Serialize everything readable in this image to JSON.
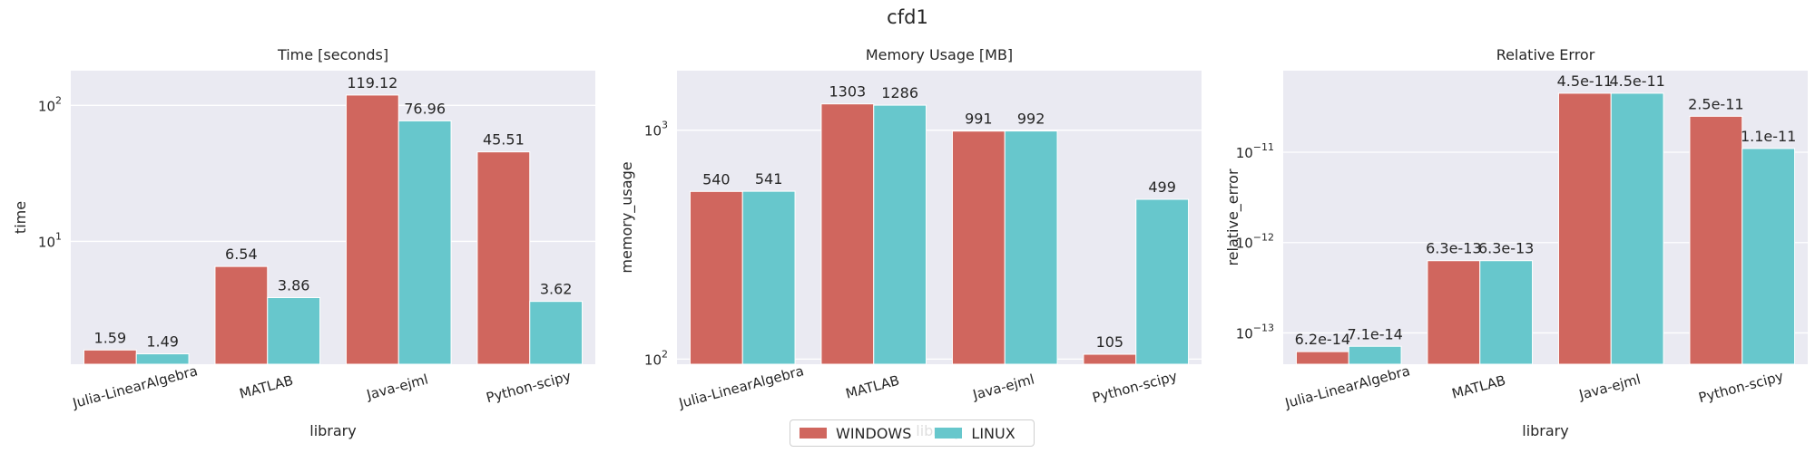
{
  "figure": {
    "title": "cfd1"
  },
  "colors": {
    "WINDOWS": "#d0665e",
    "LINUX": "#67c7cc",
    "panel_bg": "#eaeaf2",
    "grid": "#ffffff"
  },
  "legend": {
    "items": [
      {
        "label": "WINDOWS"
      },
      {
        "label": "LINUX"
      }
    ],
    "placement": "lower-center"
  },
  "chart_data": [
    {
      "type": "bar",
      "title": "Time [seconds]",
      "xlabel": "library",
      "ylabel": "time",
      "yscale": "log",
      "ylim": [
        1.25,
        180
      ],
      "yticks": [
        10,
        100
      ],
      "yticklabels": [
        [
          "10",
          "1"
        ],
        [
          "10",
          "2"
        ]
      ],
      "categories": [
        "Julia-LinearAlgebra",
        "MATLAB",
        "Java-ejml",
        "Python-scipy"
      ],
      "series": [
        {
          "name": "WINDOWS",
          "values": [
            1.59,
            6.54,
            119.12,
            45.51
          ],
          "labels": [
            "1.59",
            "6.54",
            "119.12",
            "45.51"
          ]
        },
        {
          "name": "LINUX",
          "values": [
            1.49,
            3.86,
            76.96,
            3.62
          ],
          "labels": [
            "1.49",
            "3.86",
            "76.96",
            "3.62"
          ]
        }
      ],
      "grid": true
    },
    {
      "type": "bar",
      "title": "Memory Usage [MB]",
      "xlabel": "library",
      "ylabel": "memory_usage",
      "yscale": "log",
      "ylim": [
        95,
        1820
      ],
      "yticks": [
        100,
        1000
      ],
      "yticklabels": [
        [
          "10",
          "2"
        ],
        [
          "10",
          "3"
        ]
      ],
      "categories": [
        "Julia-LinearAlgebra",
        "MATLAB",
        "Java-ejml",
        "Python-scipy"
      ],
      "series": [
        {
          "name": "WINDOWS",
          "values": [
            540,
            1303,
            991,
            105
          ],
          "labels": [
            "540",
            "1303",
            "991",
            "105"
          ]
        },
        {
          "name": "LINUX",
          "values": [
            541,
            1286,
            992,
            499
          ],
          "labels": [
            "541",
            "1286",
            "992",
            "499"
          ]
        }
      ],
      "grid": true
    },
    {
      "type": "bar",
      "title": "Relative Error",
      "xlabel": "library",
      "ylabel": "relative_error",
      "yscale": "log",
      "ylim": [
        4.5e-14,
        8e-11
      ],
      "yticks": [
        1e-13,
        1e-12,
        1e-11
      ],
      "yticklabels": [
        [
          "10",
          "−13"
        ],
        [
          "10",
          "−12"
        ],
        [
          "10",
          "−11"
        ]
      ],
      "categories": [
        "Julia-LinearAlgebra",
        "MATLAB",
        "Java-ejml",
        "Python-scipy"
      ],
      "series": [
        {
          "name": "WINDOWS",
          "values": [
            6.2e-14,
            6.3e-13,
            4.5e-11,
            2.5e-11
          ],
          "labels": [
            "6.2e-14",
            "6.3e-13",
            "4.5e-11",
            "2.5e-11"
          ]
        },
        {
          "name": "LINUX",
          "values": [
            7.1e-14,
            6.3e-13,
            4.5e-11,
            1.1e-11
          ],
          "labels": [
            "7.1e-14",
            "6.3e-13",
            "4.5e-11",
            "1.1e-11"
          ]
        }
      ],
      "grid": true
    }
  ]
}
